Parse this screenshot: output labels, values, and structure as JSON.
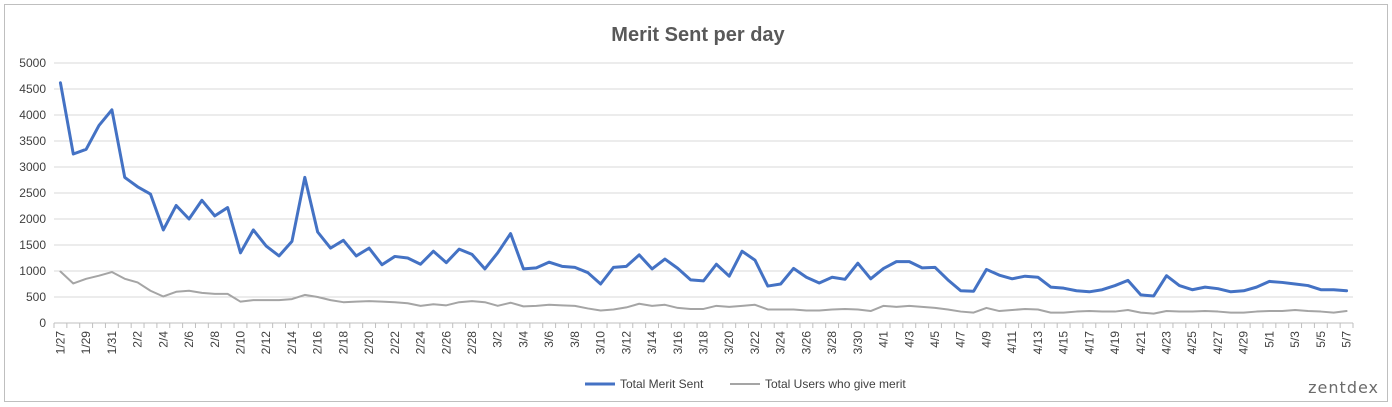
{
  "chart_data": {
    "type": "line",
    "title": "Merit Sent per day",
    "xlabel": "",
    "ylabel": "",
    "ylim": [
      0,
      5000
    ],
    "yticks": [
      0,
      500,
      1000,
      1500,
      2000,
      2500,
      3000,
      3500,
      4000,
      4500,
      5000
    ],
    "grid": true,
    "legend_position": "bottom",
    "x": [
      "1/27",
      "1/28",
      "1/29",
      "1/30",
      "1/31",
      "2/1",
      "2/2",
      "2/3",
      "2/4",
      "2/5",
      "2/6",
      "2/7",
      "2/8",
      "2/9",
      "2/10",
      "2/11",
      "2/12",
      "2/13",
      "2/14",
      "2/15",
      "2/16",
      "2/17",
      "2/18",
      "2/19",
      "2/20",
      "2/21",
      "2/22",
      "2/23",
      "2/24",
      "2/25",
      "2/26",
      "2/27",
      "2/28",
      "3/1",
      "3/2",
      "3/3",
      "3/4",
      "3/5",
      "3/6",
      "3/7",
      "3/8",
      "3/9",
      "3/10",
      "3/11",
      "3/12",
      "3/13",
      "3/14",
      "3/15",
      "3/16",
      "3/17",
      "3/18",
      "3/19",
      "3/20",
      "3/21",
      "3/22",
      "3/23",
      "3/24",
      "3/25",
      "3/26",
      "3/27",
      "3/28",
      "3/29",
      "3/30",
      "3/31",
      "4/1",
      "4/2",
      "4/3",
      "4/4",
      "4/5",
      "4/6",
      "4/7",
      "4/8",
      "4/9",
      "4/10",
      "4/11",
      "4/12",
      "4/13",
      "4/14",
      "4/15",
      "4/16",
      "4/17",
      "4/18",
      "4/19",
      "4/20",
      "4/21",
      "4/22",
      "4/23",
      "4/24",
      "4/25",
      "4/26",
      "4/27",
      "4/28",
      "4/29",
      "4/30",
      "5/1",
      "5/2",
      "5/3",
      "5/4",
      "5/5",
      "5/6",
      "5/7"
    ],
    "x_tick_labels": [
      "1/27",
      "1/29",
      "1/31",
      "2/2",
      "2/4",
      "2/6",
      "2/8",
      "2/10",
      "2/12",
      "2/14",
      "2/16",
      "2/18",
      "2/20",
      "2/22",
      "2/24",
      "2/26",
      "2/28",
      "3/2",
      "3/4",
      "3/6",
      "3/8",
      "3/10",
      "3/12",
      "3/14",
      "3/16",
      "3/18",
      "3/20",
      "3/22",
      "3/24",
      "3/26",
      "3/28",
      "3/30",
      "4/1",
      "4/3",
      "4/5",
      "4/7",
      "4/9",
      "4/11",
      "4/13",
      "4/15",
      "4/17",
      "4/19",
      "4/21",
      "4/23",
      "4/25",
      "4/27",
      "4/29",
      "5/1",
      "5/3",
      "5/5",
      "5/7"
    ],
    "series": [
      {
        "name": "Total Merit Sent",
        "color": "#4472c4",
        "values": [
          4620,
          3250,
          3340,
          3800,
          4100,
          2800,
          2620,
          2480,
          1790,
          2260,
          2000,
          2360,
          2060,
          2220,
          1350,
          1790,
          1480,
          1290,
          1570,
          2800,
          1750,
          1440,
          1590,
          1290,
          1440,
          1120,
          1280,
          1250,
          1130,
          1380,
          1160,
          1420,
          1320,
          1040,
          1350,
          1720,
          1040,
          1060,
          1170,
          1090,
          1070,
          970,
          750,
          1070,
          1090,
          1310,
          1040,
          1230,
          1050,
          830,
          810,
          1130,
          900,
          1380,
          1210,
          710,
          750,
          1050,
          880,
          770,
          880,
          840,
          1150,
          850,
          1050,
          1180,
          1180,
          1060,
          1070,
          830,
          620,
          610,
          1030,
          920,
          850,
          900,
          880,
          690,
          670,
          620,
          600,
          640,
          720,
          820,
          540,
          520,
          910,
          720,
          640,
          690,
          660,
          600,
          620,
          690,
          800,
          780,
          750,
          720,
          640,
          640,
          620
        ]
      },
      {
        "name": "Total Users who give merit",
        "color": "#a5a5a5",
        "values": [
          990,
          760,
          850,
          910,
          980,
          850,
          780,
          620,
          510,
          600,
          620,
          580,
          560,
          560,
          410,
          440,
          440,
          440,
          460,
          540,
          500,
          440,
          400,
          410,
          420,
          410,
          400,
          380,
          330,
          360,
          340,
          400,
          420,
          400,
          330,
          390,
          320,
          330,
          350,
          340,
          330,
          280,
          240,
          260,
          300,
          370,
          330,
          350,
          290,
          270,
          270,
          330,
          310,
          330,
          350,
          260,
          260,
          260,
          240,
          240,
          260,
          270,
          260,
          230,
          330,
          310,
          330,
          310,
          290,
          260,
          220,
          200,
          290,
          230,
          250,
          270,
          260,
          200,
          200,
          220,
          230,
          220,
          220,
          250,
          200,
          180,
          230,
          220,
          220,
          230,
          220,
          200,
          200,
          220,
          230,
          230,
          250,
          230,
          220,
          200,
          230
        ]
      }
    ]
  },
  "watermark": "zentdex"
}
